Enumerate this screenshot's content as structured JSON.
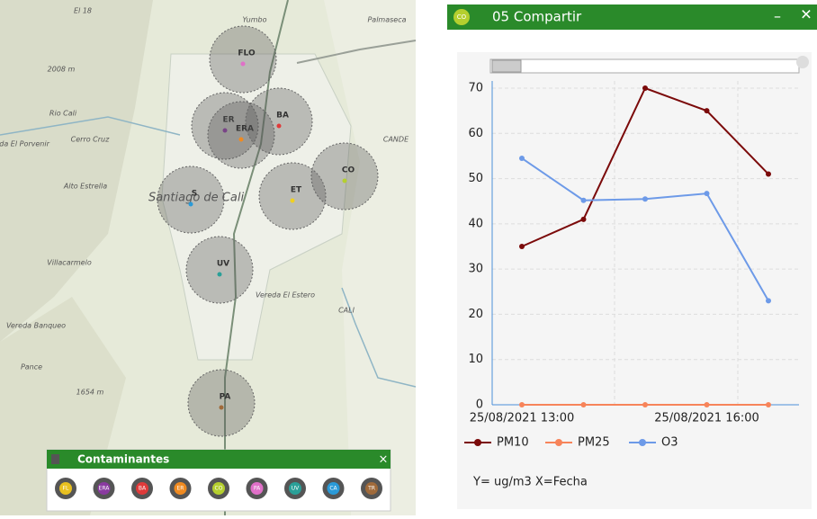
{
  "map": {
    "places": [
      "El 18",
      "Yumbo",
      "Palmaseca",
      "2008 m",
      "Rio Cali",
      "Vereda El Porvenir",
      "Cerro Cruz",
      "Alto Estrella",
      "Santiago de Cali",
      "Villacarmelo",
      "Vereda El Estero",
      "Vereda Banqueo",
      "Pance",
      "1654 m",
      "CANDE",
      "CALI"
    ],
    "stations": [
      "FLO",
      "ER",
      "ERA",
      "BA",
      "CO",
      "ET",
      "S",
      "UV",
      "PA"
    ]
  },
  "pollutants_panel": {
    "title": "Contaminantes",
    "close": "×",
    "buttons": [
      "FL",
      "ERA",
      "BA",
      "ER",
      "CO",
      "PA",
      "UV",
      "CA",
      "TR"
    ]
  },
  "window": {
    "icon": "CO",
    "title": "05 Compartir",
    "minimize": "–",
    "close": "✕"
  },
  "chart_data": {
    "type": "line",
    "categories": [
      "25/08/2021 13:00",
      null,
      null,
      "25/08/2021 16:00",
      null
    ],
    "series": [
      {
        "name": "PM10",
        "color": "#7b0a0a",
        "values": [
          35,
          41,
          70,
          65,
          51
        ]
      },
      {
        "name": "PM25",
        "color": "#f7845a",
        "values": [
          0,
          0,
          0,
          0,
          0
        ]
      },
      {
        "name": "O3",
        "color": "#6d9ae8",
        "values": [
          54.5,
          45.2,
          45.5,
          46.7,
          23
        ]
      }
    ],
    "ylim": [
      0,
      70
    ],
    "yticks": [
      0,
      10,
      20,
      30,
      40,
      50,
      60,
      70
    ],
    "grid": true,
    "note": "Y= ug/m3  X=Fecha"
  }
}
